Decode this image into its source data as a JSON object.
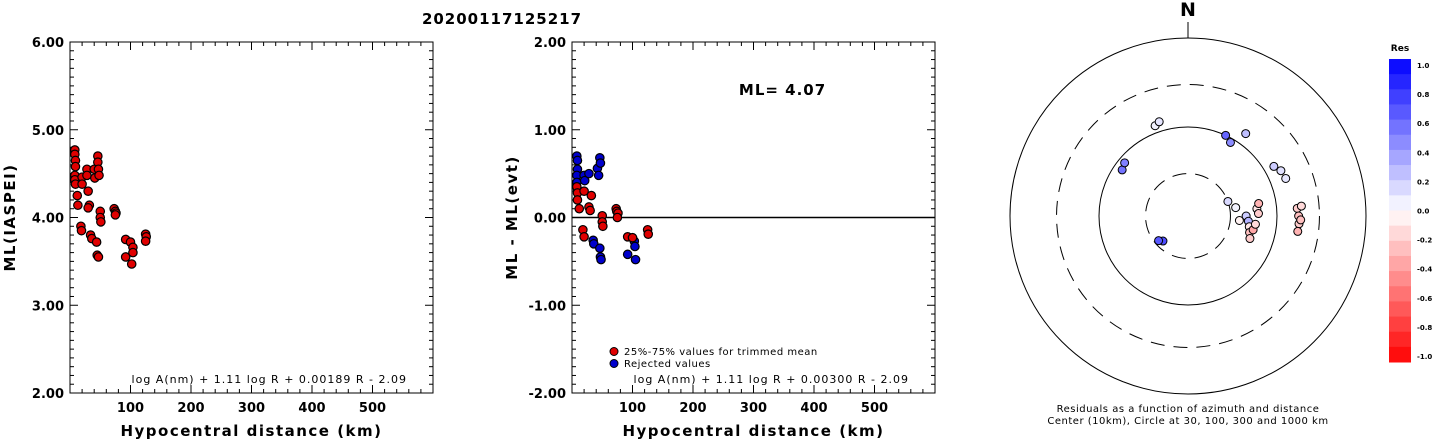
{
  "title": "20200117125217",
  "chart_data": [
    {
      "type": "scatter",
      "xlabel": "Hypocentral distance (km)",
      "ylabel": "ML(IASPEI)",
      "xlim": [
        0,
        600
      ],
      "ylim": [
        2.0,
        6.0
      ],
      "xticks": [
        "100",
        "200",
        "300",
        "400",
        "500"
      ],
      "yticks": [
        "2.00",
        "3.00",
        "4.00",
        "5.00",
        "6.00"
      ],
      "formula": "log A(nm) + 1.11 log R + 0.00189 R - 2.09",
      "series": [
        {
          "color": "#e00000",
          "points": [
            [
              8,
              4.77
            ],
            [
              8,
              4.72
            ],
            [
              9,
              4.65
            ],
            [
              9,
              4.58
            ],
            [
              8,
              4.48
            ],
            [
              8,
              4.43
            ],
            [
              9,
              4.38
            ],
            [
              12,
              4.25
            ],
            [
              13,
              4.14
            ],
            [
              20,
              4.46
            ],
            [
              20,
              4.38
            ],
            [
              18,
              3.9
            ],
            [
              19,
              3.85
            ],
            [
              28,
              4.55
            ],
            [
              28,
              4.48
            ],
            [
              30,
              4.3
            ],
            [
              32,
              4.14
            ],
            [
              30,
              4.11
            ],
            [
              40,
              4.55
            ],
            [
              41,
              4.45
            ],
            [
              34,
              3.8
            ],
            [
              36,
              3.76
            ],
            [
              46,
              4.7
            ],
            [
              46,
              4.63
            ],
            [
              47,
              4.55
            ],
            [
              48,
              4.48
            ],
            [
              50,
              4.07
            ],
            [
              50,
              4.0
            ],
            [
              51,
              3.95
            ],
            [
              44,
              3.72
            ],
            [
              45,
              3.57
            ],
            [
              47,
              3.55
            ],
            [
              73,
              4.1
            ],
            [
              75,
              4.07
            ],
            [
              76,
              4.05
            ],
            [
              75,
              4.03
            ],
            [
              92,
              3.75
            ],
            [
              92,
              3.55
            ],
            [
              100,
              3.72
            ],
            [
              102,
              3.47
            ],
            [
              104,
              3.66
            ],
            [
              104,
              3.6
            ],
            [
              125,
              3.81
            ],
            [
              126,
              3.78
            ],
            [
              125,
              3.73
            ]
          ]
        }
      ]
    },
    {
      "type": "scatter",
      "xlabel": "Hypocentral distance (km)",
      "ylabel": "ML - ML(evt)",
      "xlim": [
        0,
        600
      ],
      "ylim": [
        -2.0,
        2.0
      ],
      "xticks": [
        "100",
        "200",
        "300",
        "400",
        "500"
      ],
      "yticks": [
        "-2.00",
        "-1.00",
        "0.00",
        "1.00",
        "2.00"
      ],
      "reference_line": 0.0,
      "annotation": "ML= 4.07",
      "formula": "log A(nm) + 1.11 log R + 0.00300 R - 2.09",
      "legend": [
        {
          "label": "25%-75% values for trimmed mean",
          "color": "#e00000"
        },
        {
          "label": "Rejected values",
          "color": "#0000cc"
        }
      ],
      "series": [
        {
          "color": "#0000cc",
          "points": [
            [
              8,
              0.7
            ],
            [
              9,
              0.65
            ],
            [
              9,
              0.55
            ],
            [
              8,
              0.48
            ],
            [
              8,
              0.4
            ],
            [
              9,
              0.32
            ],
            [
              20,
              0.48
            ],
            [
              21,
              0.42
            ],
            [
              28,
              0.5
            ],
            [
              42,
              0.56
            ],
            [
              44,
              0.48
            ],
            [
              46,
              0.68
            ],
            [
              47,
              0.62
            ],
            [
              35,
              -0.26
            ],
            [
              36,
              -0.3
            ],
            [
              46,
              -0.35
            ],
            [
              47,
              -0.45
            ],
            [
              48,
              -0.48
            ],
            [
              92,
              -0.42
            ],
            [
              103,
              -0.27
            ],
            [
              104,
              -0.33
            ],
            [
              105,
              -0.48
            ]
          ]
        },
        {
          "color": "#e00000",
          "points": [
            [
              8,
              0.35
            ],
            [
              9,
              0.28
            ],
            [
              9,
              0.2
            ],
            [
              12,
              0.1
            ],
            [
              20,
              0.3
            ],
            [
              18,
              -0.14
            ],
            [
              20,
              -0.22
            ],
            [
              28,
              0.12
            ],
            [
              32,
              0.25
            ],
            [
              30,
              0.08
            ],
            [
              50,
              0.02
            ],
            [
              50,
              -0.05
            ],
            [
              51,
              -0.1
            ],
            [
              73,
              0.1
            ],
            [
              74,
              0.07
            ],
            [
              76,
              0.05
            ],
            [
              75,
              0.0
            ],
            [
              92,
              -0.22
            ],
            [
              100,
              -0.23
            ],
            [
              125,
              -0.14
            ],
            [
              126,
              -0.19
            ]
          ]
        }
      ]
    },
    {
      "type": "scatter",
      "subtype": "polar",
      "north_label": "N",
      "caption_line1": "Residuals as a function of azimuth and distance",
      "caption_line2": "Center (10km), Circle at 30, 100, 300 and 1000 km",
      "rings_km": [
        30,
        100,
        300,
        1000
      ],
      "colorbar": {
        "title": "Res",
        "ticks": [
          "1.0",
          "0.8",
          "0.6",
          "0.4",
          "0.2",
          "0.0",
          "-0.2",
          "-0.4",
          "-0.6",
          "-0.8",
          "-1.0"
        ],
        "positive_color": "#0000ff",
        "negative_color": "#ff0000"
      },
      "points": [
        {
          "azimuth_deg": 340,
          "distance_km": 120,
          "residual": 0.05
        },
        {
          "azimuth_deg": 343,
          "distance_km": 128,
          "residual": 0.1
        },
        {
          "azimuth_deg": 305,
          "distance_km": 80,
          "residual": 0.55
        },
        {
          "azimuth_deg": 310,
          "distance_km": 85,
          "residual": 0.5
        },
        {
          "azimuth_deg": 25,
          "distance_km": 100,
          "residual": 0.6
        },
        {
          "azimuth_deg": 30,
          "distance_km": 90,
          "residual": 0.45
        },
        {
          "azimuth_deg": 35,
          "distance_km": 135,
          "residual": 0.25
        },
        {
          "azimuth_deg": 60,
          "distance_km": 130,
          "residual": 0.2
        },
        {
          "azimuth_deg": 64,
          "distance_km": 145,
          "residual": 0.12
        },
        {
          "azimuth_deg": 69,
          "distance_km": 150,
          "residual": 0.1
        },
        {
          "azimuth_deg": 225,
          "distance_km": 25,
          "residual": 0.7
        },
        {
          "azimuth_deg": 230,
          "distance_km": 27,
          "residual": 0.65
        },
        {
          "azimuth_deg": 70,
          "distance_km": 30,
          "residual": 0.15
        },
        {
          "azimuth_deg": 80,
          "distance_km": 35,
          "residual": 0.05
        },
        {
          "azimuth_deg": 95,
          "distance_km": 38,
          "residual": -0.05
        },
        {
          "azimuth_deg": 90,
          "distance_km": 45,
          "residual": 0.2
        },
        {
          "azimuth_deg": 95,
          "distance_km": 48,
          "residual": 0.3
        },
        {
          "azimuth_deg": 100,
          "distance_km": 50,
          "residual": -0.1
        },
        {
          "azimuth_deg": 105,
          "distance_km": 52,
          "residual": -0.25
        },
        {
          "azimuth_deg": 102,
          "distance_km": 56,
          "residual": -0.35
        },
        {
          "azimuth_deg": 97,
          "distance_km": 58,
          "residual": -0.15
        },
        {
          "azimuth_deg": 110,
          "distance_km": 55,
          "residual": -0.2
        },
        {
          "azimuth_deg": 84,
          "distance_km": 60,
          "residual": -0.1
        },
        {
          "azimuth_deg": 88,
          "distance_km": 62,
          "residual": -0.2
        },
        {
          "azimuth_deg": 80,
          "distance_km": 64,
          "residual": -0.3
        },
        {
          "azimuth_deg": 86,
          "distance_km": 170,
          "residual": -0.2
        },
        {
          "azimuth_deg": 90,
          "distance_km": 175,
          "residual": -0.25
        },
        {
          "azimuth_deg": 94,
          "distance_km": 178,
          "residual": -0.2
        },
        {
          "azimuth_deg": 98,
          "distance_km": 176,
          "residual": -0.3
        },
        {
          "azimuth_deg": 92,
          "distance_km": 185,
          "residual": -0.25
        },
        {
          "azimuth_deg": 85,
          "distance_km": 190,
          "residual": -0.15
        }
      ]
    }
  ]
}
